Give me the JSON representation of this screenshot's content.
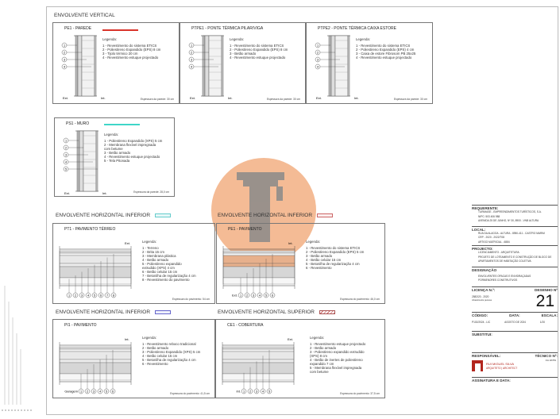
{
  "sections": {
    "vertical": "ENVOLVENTE VERTICAL",
    "hor_inf_1": "ENVOLVENTE HORIZONTAL INFERIOR",
    "hor_inf_2": "ENVOLVENTE HORIZONTAL INFERIOR",
    "hor_inf_3": "ENVOLVENTE HORIZONTAL INFERIOR",
    "hor_sup": "ENVOLVENTE HORIZONTAL SUPERIOR"
  },
  "colors": {
    "pe1": "#d9342b",
    "ps1": "#3fd6c8",
    "watermark": "#f0a472"
  },
  "panels": {
    "pe1": {
      "title": "PE1 - PAREDE",
      "legend_title": "Legenda:",
      "legend": "1 - Revestimento do sistema ETICS\n2 - Poliestireno Expandido (EPS) 8 cm\n3 - Tijolo térmico 20 cm\n4 - Revestimento estuque projectado",
      "ext": "Ext.",
      "int": "Int.",
      "thickness": "Espessura da parede: 30 cm",
      "markers": [
        "1",
        "2",
        "3",
        "4"
      ]
    },
    "ptpe1": {
      "title": "PTPE1 - PONTE TÉRMICA PILAR/VIGA",
      "legend_title": "Legenda:",
      "legend": "1 - Revestimento do sistema ETICS\n2 - Poliestireno Expandido (EPS) 8 cm\n3 - Betão armado\n4 - Revestimento estuque projectado",
      "ext": "Ext.",
      "int": "Int.",
      "thickness": "Espessura da parede: 30 cm",
      "markers": [
        "1",
        "2",
        "3",
        "4"
      ]
    },
    "ptpe2": {
      "title": "PTPE2 - PONTE TÉRMICA CAIXA ESTORE",
      "legend_title": "Legenda:",
      "legend": "1 - Revestimento do sistema ETICS\n2 - Poliestireno Expandido (EPS) 4 cm\n3 - Caixa de estore Fibrosom PB 25x25\n4 - Revestimento estuque projectado",
      "ext": "Ext.",
      "int": "Int.",
      "thickness": "Espessura da parede: 30 cm",
      "markers": [
        "1",
        "2",
        "3",
        "4"
      ]
    },
    "ps1": {
      "title": "PS1 - MURO",
      "legend_title": "Legenda:",
      "legend": "1 - Poliestireno Expandido (XPS) 5 cm\n2 - Membrana flexível impregnada\ncom betume\n3 - Betão armado\n4 - Revestimento estuque projectado\n5 - Tela Pitonada",
      "ext": "Ext.",
      "int": "Int.",
      "thickness": "Espessura da parede: 28,0 cm",
      "markers": [
        "1",
        "2",
        "3",
        "4",
        "5"
      ]
    },
    "pt1": {
      "title": "PT1 - PAVIMENTO TÉRREO",
      "legend_title": "Legenda:",
      "legend": "1 - Terreno\n2 - Brita 15 cm\n3 - Membrana plástica\n4 - Betão armado\n5 - Poliestireno expandido\nextrudido (XPS) 4 cm\n6 - Betão celular 15 cm\n7 - Betonilha de regularização 4 cm\n8 - Revestimento do pavimento",
      "top": "Ext.",
      "bottom": "",
      "thickness": "Espessura do pavimento: 54 cm",
      "markers": [
        "1",
        "2",
        "3",
        "4",
        "5",
        "6",
        "7",
        "8"
      ]
    },
    "pe1p": {
      "title": "PE1 - PAVIMENTO",
      "legend_title": "Legenda:",
      "legend": "1 - Revestimento do sistema ETICS\n2 - Poliestireno Expandido (EPS) 5 cm\n3 - Betão armado\n4 - Betão celular 15 cm\n5 - Betonilha de regularização 4 cm\n6 - Revestimento",
      "top": "Int.",
      "bottom": "Ext.",
      "thickness": "Espessura do pavimento: 46,0 cm",
      "markers": [
        "1",
        "2",
        "3",
        "4",
        "5",
        "6"
      ]
    },
    "pi1": {
      "title": "PI1 - PAVIMENTO",
      "legend_title": "Legenda:",
      "legend": "1 - Revestimento reboco tradicional\n2 - Betão armado\n3 - Poliestireno Expandido (XPS) 5 cm\n4 - Betão celular 15 cm\n5 - Betonilha de regularização 4 cm\n6 - Revestimento",
      "top": "Int.",
      "bottom": "Garagem",
      "thickness": "Espessura do pavimento: 41,5 cm",
      "markers": [
        "1",
        "2",
        "3",
        "4",
        "5",
        "6"
      ]
    },
    "ce1": {
      "title": "CE1 - COBERTURA",
      "legend_title": "Legenda:",
      "legend": "1 - Revestimento estuque projectado\n2 - Betão armado\n3 - Poliestireno expandido extrudido\n(XPS) 8 cm\n4 - Betão de inertes de poliestireno\nexpandido 7 cm\n5 - Membrana flexível impregnada\ncom betume",
      "top": "Ext.",
      "bottom": "Int.",
      "thickness": "Espessura do pavimento: 37,5 cm",
      "markers": [
        "1",
        "2",
        "3",
        "4",
        "5"
      ]
    }
  },
  "title_block": {
    "requerente_label": "REQUERENTE:",
    "requerente": [
      "TURIMASE - EMPREENDIMENTOS TURÍSTICOS, S.A.",
      "NIPC: 503 406 988",
      "AVENIDA 25 DE JUNHO, Nº 30, 8900 - VNB ALTURA"
    ],
    "local_label": "LOCAL:",
    "local": [
      "RUA DA ALAGOA - ALTURA - 8950-411 - CASTRO MARIM",
      "CRP - 2020 - 2022/T08",
      "ARTIGO MATRICIAL - 6884"
    ],
    "projecto_label": "PROJECTO:",
    "projecto": [
      "LICENCIAMENTO - ARQUITETURA",
      "PROJETO DE LOTEAMENTO E CONSTRUÇÃO DE BLOCO DE",
      "APARTAMENTOS DE HABITAÇÃO COLETIVA"
    ],
    "designacao_label": "DESIGNAÇÃO",
    "designacao": [
      "ENVOLVENTES OPACAS E ENVIDRAÇADAS",
      "PORMENORES CONSTRUTIVOS"
    ],
    "licenca_label": "LICENÇA N.º:",
    "licenca": [
      "2582/20 - 2020",
      "Alvará/outra pessoa"
    ],
    "desenho_label": "DESENHO Nº",
    "desenho": "21",
    "codigo_label": "CÓDIGO:",
    "codigo": "P102/2024 - LIC",
    "data_label": "DATA:",
    "data": "AGOSTO DE 2024",
    "escala_label": "ESCALA:",
    "escala": "1/20",
    "substitui_label": "SUBSTITUI:",
    "responsavel_label": "RESPONSÁVEL:",
    "tecnico_label": "TÉCNICO Nº:",
    "tecnico": "OA 18783",
    "logo_name": "RUI MIGUEL SILVA",
    "logo_sub": "ARQUITETO | ARCHITECT",
    "assinatura_label": "ASSINATURA E DATA:"
  }
}
